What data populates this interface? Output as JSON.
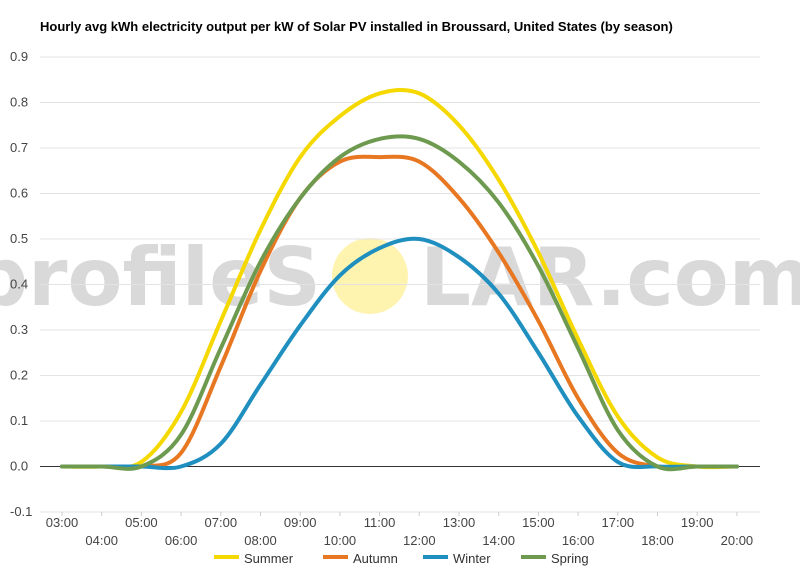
{
  "chart_data": {
    "type": "line",
    "title": "Hourly avg kWh electricity output per kW of Solar PV installed in Broussard, United States (by season)",
    "xlabel": "",
    "ylabel": "",
    "x": [
      "03:00",
      "04:00",
      "05:00",
      "06:00",
      "07:00",
      "08:00",
      "09:00",
      "10:00",
      "11:00",
      "12:00",
      "13:00",
      "14:00",
      "15:00",
      "16:00",
      "17:00",
      "18:00",
      "19:00",
      "20:00"
    ],
    "ylim": [
      -0.1,
      0.9
    ],
    "yticks": [
      "0.9",
      "0.8",
      "0.7",
      "0.6",
      "0.5",
      "0.4",
      "0.3",
      "0.2",
      "0.1",
      "0.0",
      "-0.1"
    ],
    "grid": true,
    "legend_position": "bottom",
    "series": [
      {
        "name": "Summer",
        "color": "#f5d800",
        "values": [
          0,
          0,
          0.01,
          0.12,
          0.32,
          0.52,
          0.68,
          0.77,
          0.82,
          0.82,
          0.75,
          0.63,
          0.47,
          0.28,
          0.11,
          0.02,
          0,
          0
        ]
      },
      {
        "name": "Autumn",
        "color": "#e87722",
        "values": [
          0,
          0,
          0,
          0.03,
          0.22,
          0.43,
          0.59,
          0.67,
          0.68,
          0.67,
          0.59,
          0.47,
          0.32,
          0.15,
          0.03,
          0,
          0,
          0
        ]
      },
      {
        "name": "Winter",
        "color": "#1f8fc0",
        "values": [
          0,
          0,
          0,
          0,
          0.05,
          0.18,
          0.31,
          0.42,
          0.48,
          0.5,
          0.46,
          0.38,
          0.25,
          0.11,
          0.01,
          0,
          0,
          0
        ]
      },
      {
        "name": "Spring",
        "color": "#6e9a50",
        "values": [
          0,
          0,
          0,
          0.07,
          0.26,
          0.45,
          0.59,
          0.68,
          0.72,
          0.72,
          0.67,
          0.58,
          0.44,
          0.26,
          0.08,
          0,
          0,
          0
        ]
      }
    ]
  },
  "watermark": {
    "text_left": "profileS",
    "text_right": "LAR.com",
    "sun_color": "#fff3b0"
  }
}
